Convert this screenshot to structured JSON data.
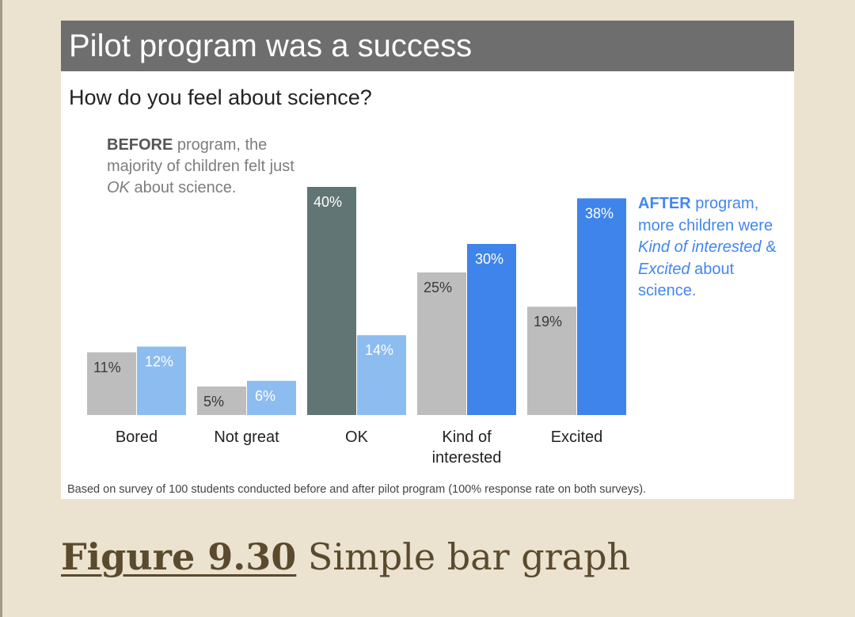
{
  "slide": {
    "title": "Pilot program was a success",
    "subtitle": "How do you feel about science?",
    "before_note": {
      "bold": "BEFORE",
      "t1": " program, the majority of children felt just ",
      "em": "OK",
      "t2": " about science."
    },
    "after_note": {
      "bold": "AFTER",
      "t1": " program, more children were ",
      "em1": "Kind of interested",
      "t2": " & ",
      "em2": "Excited",
      "t3": " about science."
    },
    "footnote": "Based on survey of 100 students conducted before and after pilot program (100% response rate on both surveys)."
  },
  "caption": {
    "figure_label": "Figure 9.30",
    "text": " Simple bar graph"
  },
  "chart_data": {
    "type": "bar",
    "title": "How do you feel about science?",
    "categories": [
      [
        "Bored"
      ],
      [
        "Not great"
      ],
      [
        "OK"
      ],
      [
        "Kind of",
        "interested"
      ],
      [
        "Excited"
      ]
    ],
    "series": [
      {
        "values": [
          11,
          5,
          40,
          25,
          19
        ],
        "labels": [
          "11%",
          "5%",
          "40%",
          "25%",
          "19%"
        ]
      },
      {
        "values": [
          12,
          6,
          14,
          30,
          38
        ],
        "labels": [
          "12%",
          "6%",
          "14%",
          "30%",
          "38%"
        ]
      }
    ],
    "value_format": "percent",
    "ylim": [
      0,
      40
    ],
    "grid": false,
    "legend": "none",
    "colors": {
      "before_default": "#bdbdbd",
      "before_highlight": "#617574",
      "before_label": "#3a3a3a",
      "before_highlight_label": "#ffffff",
      "after_light": "#8dbcf0",
      "after_strong": "#3f84ea",
      "after_light_label": "#ffffff",
      "after_strong_label": "#ffffff",
      "category_label": "#222222"
    }
  }
}
